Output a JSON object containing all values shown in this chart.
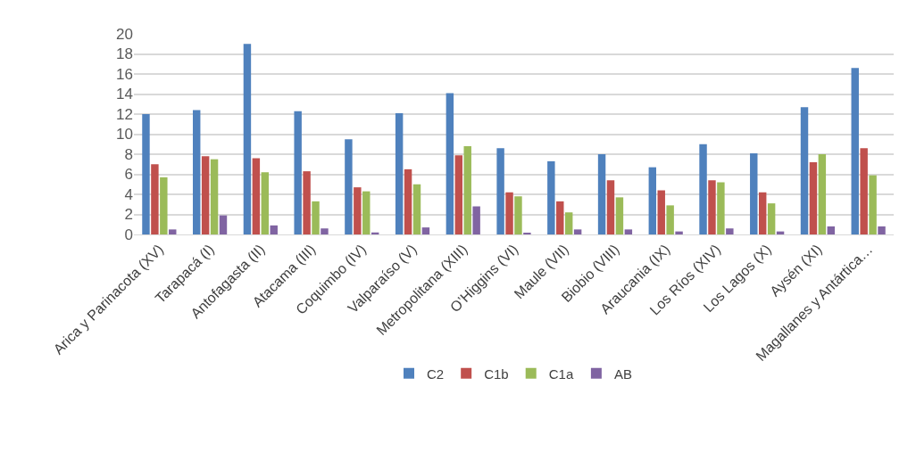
{
  "chart_data": {
    "type": "bar",
    "categories": [
      "Arica y Parinacota (XV)",
      "Tarapacá (I)",
      "Antofagasta (II)",
      "Atacama (III)",
      "Coquimbo (IV)",
      "Valparaíso (V)",
      "Metropolitana (XIII)",
      "O’Higgins (VI)",
      "Maule (VII)",
      "Biobio (VIII)",
      "Araucania (IX)",
      "Los Ríos (XIV)",
      "Los Lagos (X)",
      "Aysén (XI)",
      "Magallanes y Antártica…"
    ],
    "series": [
      {
        "name": "C2",
        "color": "#4f81bd",
        "values": [
          12,
          12.4,
          19,
          12.3,
          9.5,
          12.1,
          14.1,
          8.6,
          7.3,
          8,
          6.7,
          9,
          8.1,
          12.7,
          16.6
        ]
      },
      {
        "name": "C1b",
        "color": "#c0504d",
        "values": [
          7,
          7.8,
          7.6,
          6.3,
          4.7,
          6.5,
          7.9,
          4.2,
          3.3,
          5.4,
          4.4,
          5.4,
          4.2,
          7.2,
          8.6
        ]
      },
      {
        "name": "C1a",
        "color": "#9bbb59",
        "values": [
          5.7,
          7.5,
          6.2,
          3.3,
          4.3,
          5,
          8.8,
          3.8,
          2.2,
          3.7,
          2.9,
          5.2,
          3.1,
          8,
          5.9
        ]
      },
      {
        "name": "AB",
        "color": "#8064a2",
        "values": [
          0.5,
          1.9,
          0.9,
          0.6,
          0.2,
          0.7,
          2.8,
          0.1,
          0.5,
          0.5,
          0.3,
          0.6,
          0.3,
          0.8,
          0.8
        ]
      }
    ],
    "ylim": [
      0,
      20
    ],
    "yticks": [
      0,
      2,
      4,
      6,
      8,
      10,
      12,
      14,
      16,
      18,
      20
    ],
    "grid": "y",
    "legend": "bottom"
  }
}
